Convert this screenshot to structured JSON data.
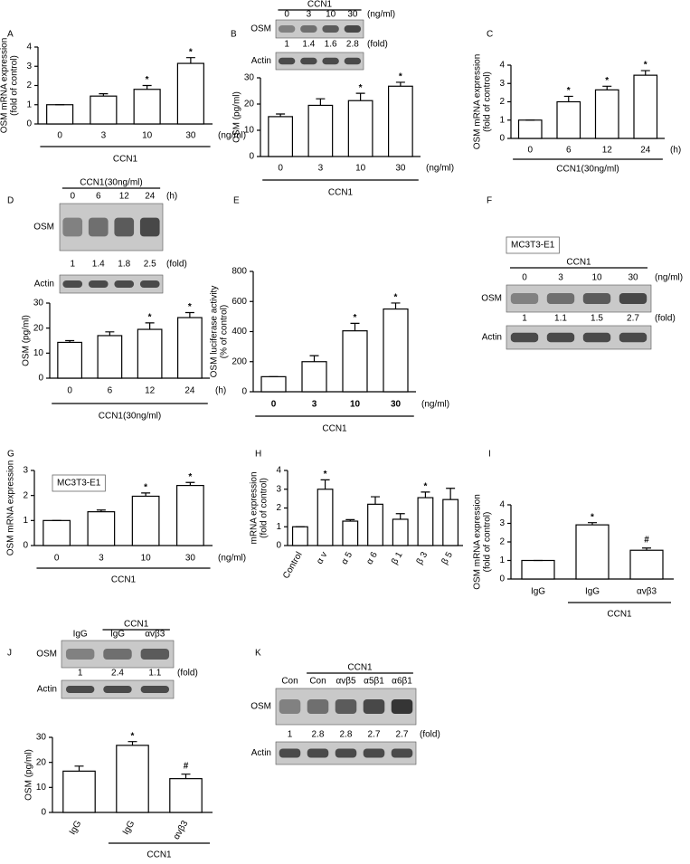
{
  "chart_data": [
    {
      "type": "bar",
      "panel": "A",
      "ylabel": [
        "OSM mRNA expression",
        "(fold of control)"
      ],
      "categories": [
        "0",
        "3",
        "10",
        "30"
      ],
      "values": [
        1,
        1.45,
        1.8,
        3.15
      ],
      "errors": [
        0,
        0.12,
        0.2,
        0.3
      ],
      "annotations": [
        null,
        null,
        "*",
        "*"
      ],
      "unit": "(ng/ml)",
      "group": "CCN1",
      "ylim": [
        0,
        4
      ],
      "yticks": [
        0,
        1,
        2,
        3,
        4
      ],
      "color": "#ffffff"
    },
    {
      "type": "bar",
      "panel": "B",
      "ylabel": [
        "OSM (pg/ml)"
      ],
      "categories": [
        "0",
        "3",
        "10",
        "30"
      ],
      "values": [
        15.2,
        19.5,
        21.3,
        26.8
      ],
      "errors": [
        1,
        2.5,
        2.8,
        1.5
      ],
      "annotations": [
        null,
        null,
        "*",
        "*"
      ],
      "unit": "(ng/ml)",
      "group": "CCN1",
      "ylim": [
        0,
        30
      ],
      "yticks": [
        0,
        10,
        20,
        30
      ],
      "color": "#ffffff",
      "blot": {
        "title": "CCN1",
        "lanes": [
          "0",
          "3",
          "10",
          "30"
        ],
        "unit": "(ng/ml)",
        "rows": [
          "OSM",
          "Actin"
        ],
        "fold": [
          1,
          1.4,
          1.6,
          2.8
        ],
        "fold_unit": "(fold)"
      }
    },
    {
      "type": "bar",
      "panel": "C",
      "ylabel": [
        "OSM mRNA expression",
        "(fold of control)"
      ],
      "categories": [
        "0",
        "6",
        "12",
        "24"
      ],
      "values": [
        1,
        2,
        2.65,
        3.45
      ],
      "errors": [
        0,
        0.3,
        0.2,
        0.25
      ],
      "annotations": [
        null,
        "*",
        "*",
        "*"
      ],
      "unit": "(h)",
      "group": "CCN1(30ng/ml)",
      "ylim": [
        0,
        4
      ],
      "yticks": [
        0,
        1,
        2,
        3,
        4
      ],
      "color": "#ffffff"
    },
    {
      "type": "bar",
      "panel": "D",
      "ylabel": [
        "OSM (pg/ml)"
      ],
      "categories": [
        "0",
        "6",
        "12",
        "24"
      ],
      "values": [
        14.3,
        17,
        19.5,
        24.2
      ],
      "errors": [
        0.7,
        1.5,
        2.6,
        2
      ],
      "annotations": [
        null,
        null,
        "*",
        "*"
      ],
      "unit": "(h)",
      "group": "CCN1(30ng/ml)",
      "ylim": [
        0,
        30
      ],
      "yticks": [
        0,
        10,
        20,
        30
      ],
      "color": "#ffffff",
      "blot": {
        "title": "CCN1(30ng/ml)",
        "lanes": [
          "0",
          "6",
          "12",
          "24"
        ],
        "unit": "(h)",
        "rows": [
          "OSM",
          "Actin"
        ],
        "fold": [
          1,
          1.4,
          1.8,
          2.5
        ],
        "fold_unit": "(fold)"
      }
    },
    {
      "type": "bar",
      "panel": "E",
      "ylabel": [
        "OSM luciferase activity",
        "(% of control)"
      ],
      "categories": [
        "0",
        "3",
        "10",
        "30"
      ],
      "values": [
        100,
        200,
        405,
        550
      ],
      "errors": [
        0,
        40,
        50,
        40
      ],
      "annotations": [
        null,
        null,
        "*",
        "*"
      ],
      "unit": "(ng/ml)",
      "group": "CCN1",
      "ylim": [
        0,
        800
      ],
      "yticks": [
        0,
        200,
        400,
        600,
        800
      ],
      "color": "#ffffff"
    },
    {
      "type": "blot",
      "panel": "F",
      "cell_line": "MC3T3-E1",
      "blot": {
        "title": "CCN1",
        "lanes": [
          "0",
          "3",
          "10",
          "30"
        ],
        "unit": "(ng/ml)",
        "rows": [
          "OSM",
          "Actin"
        ],
        "fold": [
          1,
          1.1,
          1.5,
          2.7
        ],
        "fold_unit": "(fold)"
      }
    },
    {
      "type": "bar",
      "panel": "G",
      "cell_line": "MC3T3-E1",
      "ylabel": [
        "OSM mRNA expression"
      ],
      "categories": [
        "0",
        "3",
        "10",
        "30"
      ],
      "values": [
        1,
        1.35,
        1.97,
        2.4
      ],
      "errors": [
        0,
        0.07,
        0.13,
        0.12
      ],
      "annotations": [
        null,
        null,
        "*",
        "*"
      ],
      "unit": "(ng/ml)",
      "group": "CCN1",
      "ylim": [
        0,
        3
      ],
      "yticks": [
        0,
        1,
        2,
        3
      ],
      "color": "#ffffff"
    },
    {
      "type": "bar",
      "panel": "H",
      "ylabel": [
        "mRNA expression",
        "(fold of control)"
      ],
      "categories": [
        "Control",
        "α v",
        "α 5",
        "α 6",
        "β 1",
        "β 3",
        "β 5"
      ],
      "values": [
        1,
        3,
        1.3,
        2.2,
        1.4,
        2.55,
        2.45
      ],
      "errors": [
        0,
        0.5,
        0.08,
        0.4,
        0.3,
        0.3,
        0.6
      ],
      "annotations": [
        null,
        "*",
        null,
        null,
        null,
        "*",
        null
      ],
      "ylim": [
        0,
        4
      ],
      "yticks": [
        0,
        1,
        2,
        3,
        4
      ],
      "color": "#ffffff"
    },
    {
      "type": "bar",
      "panel": "I",
      "ylabel": [
        "OSM mRNA expression",
        "(fold of control)"
      ],
      "categories": [
        "IgG",
        "IgG",
        "αvβ3"
      ],
      "values": [
        1,
        2.92,
        1.55
      ],
      "errors": [
        0,
        0.12,
        0.12
      ],
      "annotations": [
        null,
        "*",
        "#"
      ],
      "group": "CCN1",
      "ylim": [
        0,
        4
      ],
      "yticks": [
        0,
        1,
        2,
        3,
        4
      ],
      "color": "#ffffff"
    },
    {
      "type": "bar",
      "panel": "J",
      "ylabel": [
        "OSM (pg/ml)"
      ],
      "categories": [
        "IgG",
        "IgG",
        "αvβ3"
      ],
      "values": [
        16.5,
        26.8,
        13.5
      ],
      "errors": [
        2,
        1.5,
        1.8
      ],
      "annotations": [
        null,
        "*",
        "#"
      ],
      "group": "CCN1",
      "ylim": [
        0,
        30
      ],
      "yticks": [
        0,
        10,
        20,
        30
      ],
      "color": "#ffffff",
      "blot": {
        "title": "CCN1",
        "lanes": [
          "IgG",
          "IgG",
          "αvβ3"
        ],
        "rows": [
          "OSM",
          "Actin"
        ],
        "fold": [
          1,
          2.4,
          1.1
        ],
        "fold_unit": "(fold)"
      }
    },
    {
      "type": "blot",
      "panel": "K",
      "blot": {
        "title": "CCN1",
        "lanes": [
          "Con",
          "Con",
          "αvβ5",
          "α5β1",
          "α6β1"
        ],
        "rows": [
          "OSM",
          "Actin"
        ],
        "fold": [
          1,
          2.8,
          2.8,
          2.7,
          2.7
        ],
        "fold_unit": "(fold)"
      }
    }
  ]
}
